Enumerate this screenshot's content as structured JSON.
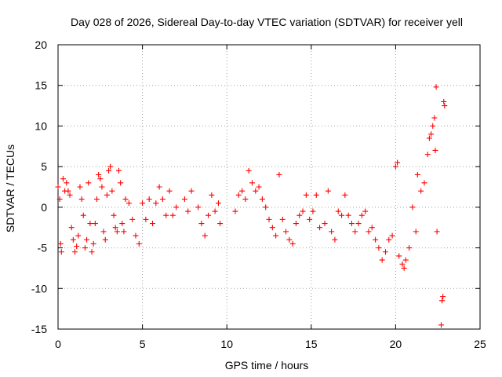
{
  "chart_data": {
    "type": "scatter",
    "title": "Day 028 of 2026, Sidereal Day-to-day VTEC variation (SDTVAR) for receiver yell",
    "xlabel": "GPS time / hours",
    "ylabel": "SDTVAR / TECUs",
    "xlim": [
      0,
      25
    ],
    "ylim": [
      -15,
      20
    ],
    "x_ticks": [
      "0",
      "5",
      "10",
      "15",
      "20",
      "25"
    ],
    "y_ticks": [
      "-15",
      "-10",
      "-5",
      "0",
      "5",
      "10",
      "15",
      "20"
    ],
    "grid": true,
    "legend": "none",
    "marker": "+",
    "color": "#ff0000",
    "series": [
      {
        "name": "SDTVAR",
        "points": [
          [
            0.0,
            2.5
          ],
          [
            0.1,
            1.0
          ],
          [
            0.15,
            -4.5
          ],
          [
            0.2,
            -5.5
          ],
          [
            0.3,
            3.5
          ],
          [
            0.4,
            2.0
          ],
          [
            0.5,
            3.0
          ],
          [
            0.6,
            2.0
          ],
          [
            0.7,
            1.5
          ],
          [
            0.8,
            -2.5
          ],
          [
            0.9,
            -4.0
          ],
          [
            1.0,
            -5.5
          ],
          [
            1.1,
            -4.8
          ],
          [
            1.2,
            -3.5
          ],
          [
            1.3,
            2.5
          ],
          [
            1.4,
            1.0
          ],
          [
            1.5,
            -1.0
          ],
          [
            1.6,
            -5.0
          ],
          [
            1.7,
            -4.0
          ],
          [
            1.8,
            3.0
          ],
          [
            1.9,
            -2.0
          ],
          [
            2.0,
            -5.5
          ],
          [
            2.1,
            -4.5
          ],
          [
            2.2,
            -2.0
          ],
          [
            2.3,
            1.0
          ],
          [
            2.4,
            4.0
          ],
          [
            2.5,
            3.5
          ],
          [
            2.6,
            2.5
          ],
          [
            2.7,
            -3.0
          ],
          [
            2.8,
            -4.0
          ],
          [
            2.9,
            1.5
          ],
          [
            3.0,
            4.5
          ],
          [
            3.1,
            5.0
          ],
          [
            3.2,
            2.0
          ],
          [
            3.3,
            -1.0
          ],
          [
            3.4,
            -2.5
          ],
          [
            3.5,
            -3.0
          ],
          [
            3.6,
            4.5
          ],
          [
            3.7,
            3.0
          ],
          [
            3.8,
            -2.0
          ],
          [
            3.9,
            -3.0
          ],
          [
            4.0,
            1.0
          ],
          [
            4.2,
            0.5
          ],
          [
            4.4,
            -1.5
          ],
          [
            4.6,
            -3.5
          ],
          [
            4.8,
            -4.5
          ],
          [
            5.0,
            0.5
          ],
          [
            5.2,
            -1.5
          ],
          [
            5.4,
            1.0
          ],
          [
            5.6,
            -2.0
          ],
          [
            5.8,
            0.5
          ],
          [
            6.0,
            2.5
          ],
          [
            6.2,
            1.0
          ],
          [
            6.4,
            -1.0
          ],
          [
            6.6,
            2.0
          ],
          [
            6.8,
            -1.0
          ],
          [
            7.0,
            0.0
          ],
          [
            7.5,
            1.0
          ],
          [
            7.7,
            -0.5
          ],
          [
            7.9,
            2.0
          ],
          [
            8.3,
            0.0
          ],
          [
            8.5,
            -2.0
          ],
          [
            8.7,
            -3.5
          ],
          [
            8.9,
            -1.0
          ],
          [
            9.1,
            1.5
          ],
          [
            9.3,
            -0.5
          ],
          [
            9.5,
            0.5
          ],
          [
            9.6,
            -2.0
          ],
          [
            10.5,
            -0.5
          ],
          [
            10.7,
            1.5
          ],
          [
            10.9,
            2.0
          ],
          [
            11.1,
            1.0
          ],
          [
            11.3,
            4.5
          ],
          [
            11.5,
            3.0
          ],
          [
            11.7,
            2.0
          ],
          [
            11.9,
            2.5
          ],
          [
            12.1,
            1.0
          ],
          [
            12.3,
            0.0
          ],
          [
            12.5,
            -1.5
          ],
          [
            12.7,
            -2.5
          ],
          [
            12.9,
            -3.5
          ],
          [
            13.1,
            4.0
          ],
          [
            13.3,
            -1.5
          ],
          [
            13.5,
            -3.0
          ],
          [
            13.7,
            -4.0
          ],
          [
            13.9,
            -4.5
          ],
          [
            14.1,
            -2.0
          ],
          [
            14.3,
            -1.0
          ],
          [
            14.5,
            -0.5
          ],
          [
            14.7,
            1.5
          ],
          [
            14.9,
            -1.5
          ],
          [
            15.1,
            -0.5
          ],
          [
            15.3,
            1.5
          ],
          [
            15.5,
            -2.5
          ],
          [
            15.8,
            -2.0
          ],
          [
            16.0,
            2.0
          ],
          [
            16.2,
            -3.0
          ],
          [
            16.4,
            -4.0
          ],
          [
            16.6,
            -0.5
          ],
          [
            16.8,
            -1.0
          ],
          [
            17.0,
            1.5
          ],
          [
            17.2,
            -1.0
          ],
          [
            17.4,
            -2.0
          ],
          [
            17.6,
            -3.0
          ],
          [
            17.8,
            -2.0
          ],
          [
            18.0,
            -1.0
          ],
          [
            18.2,
            -0.5
          ],
          [
            18.4,
            -3.0
          ],
          [
            18.6,
            -2.5
          ],
          [
            18.8,
            -4.0
          ],
          [
            19.0,
            -5.0
          ],
          [
            19.2,
            -6.5
          ],
          [
            19.4,
            -5.5
          ],
          [
            19.6,
            -4.0
          ],
          [
            19.8,
            -3.5
          ],
          [
            20.0,
            5.0
          ],
          [
            20.1,
            5.5
          ],
          [
            20.2,
            -6.0
          ],
          [
            20.4,
            -7.0
          ],
          [
            20.5,
            -7.5
          ],
          [
            20.6,
            -6.5
          ],
          [
            20.8,
            -5.0
          ],
          [
            21.0,
            0.0
          ],
          [
            21.2,
            -3.0
          ],
          [
            21.3,
            4.0
          ],
          [
            21.5,
            2.0
          ],
          [
            21.7,
            3.0
          ],
          [
            21.9,
            6.5
          ],
          [
            22.0,
            8.5
          ],
          [
            22.1,
            9.0
          ],
          [
            22.2,
            10.0
          ],
          [
            22.3,
            11.0
          ],
          [
            22.35,
            7.0
          ],
          [
            22.4,
            14.8
          ],
          [
            22.45,
            -3.0
          ],
          [
            22.7,
            -14.5
          ],
          [
            22.75,
            -11.5
          ],
          [
            22.8,
            -11.0
          ],
          [
            22.85,
            13.0
          ],
          [
            22.9,
            12.5
          ]
        ]
      }
    ]
  }
}
